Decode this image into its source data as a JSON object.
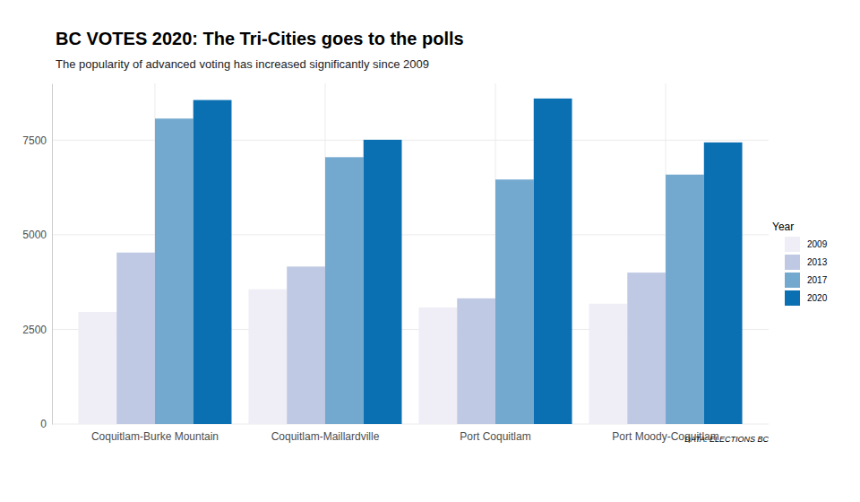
{
  "chart_data": {
    "type": "bar",
    "title": "BC VOTES 2020: The Tri-Cities goes to the polls",
    "subtitle": "The popularity of advanced voting has increased significantly since 2009",
    "caption": "DATA: ELECTIONS BC",
    "legend_title": "Year",
    "categories": [
      "Coquitlam-Burke Mountain",
      "Coquitlam-Maillardville",
      "Port Coquitlam",
      "Port Moody-Coquitlam"
    ],
    "series": [
      {
        "name": "2009",
        "color": "#efedf5",
        "values": [
          2960,
          3560,
          3080,
          3180
        ]
      },
      {
        "name": "2013",
        "color": "#bfc9e3",
        "values": [
          4530,
          4160,
          3320,
          4000
        ]
      },
      {
        "name": "2017",
        "color": "#74a9cf",
        "values": [
          8070,
          7050,
          6460,
          6590
        ]
      },
      {
        "name": "2020",
        "color": "#0a70b2",
        "values": [
          8560,
          7510,
          8600,
          7440
        ]
      }
    ],
    "ylim": [
      0,
      9000
    ],
    "yticks": [
      0,
      2500,
      5000,
      7500
    ],
    "grid": true,
    "legend": "right"
  }
}
